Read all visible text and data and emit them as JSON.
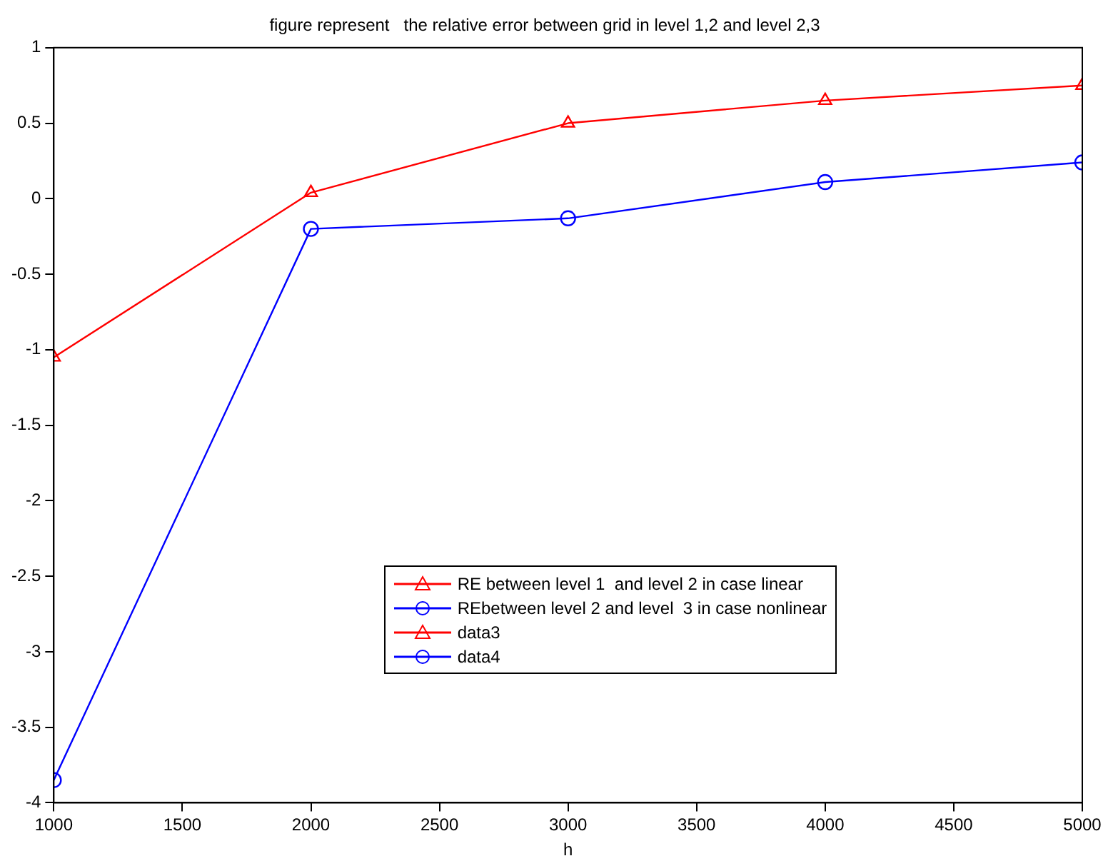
{
  "chart_data": {
    "type": "line",
    "title": "figure represent   the relative error between grid in level 1,2 and level 2,3",
    "xlabel": "h",
    "x": [
      1000,
      2000,
      3000,
      4000,
      5000
    ],
    "series": [
      {
        "name": "RE between level 1  and level 2 in case linear",
        "color": "#ff0000",
        "marker": "triangle",
        "values": [
          -1.05,
          0.04,
          0.5,
          0.65,
          0.75
        ]
      },
      {
        "name": "REbetween level 2 and level  3 in case nonlinear",
        "color": "#0000ff",
        "marker": "circle",
        "values": [
          -3.85,
          -0.2,
          -0.13,
          0.11,
          0.24
        ]
      },
      {
        "name": "data3",
        "color": "#ff0000",
        "marker": "triangle",
        "values": [
          null,
          null,
          null,
          null,
          null
        ]
      },
      {
        "name": "data4",
        "color": "#0000ff",
        "marker": "circle",
        "values": [
          null,
          null,
          null,
          null,
          null
        ]
      }
    ],
    "xlim": [
      1000,
      5000
    ],
    "xticks": [
      1000,
      1500,
      2000,
      2500,
      3000,
      3500,
      4000,
      4500,
      5000
    ],
    "ylim": [
      -4,
      1
    ],
    "yticks": [
      -4,
      -3.5,
      -3,
      -2.5,
      -2,
      -1.5,
      -1,
      -0.5,
      0,
      0.5,
      1
    ],
    "grid": false,
    "legend": "bottom",
    "line_style": "solid"
  }
}
